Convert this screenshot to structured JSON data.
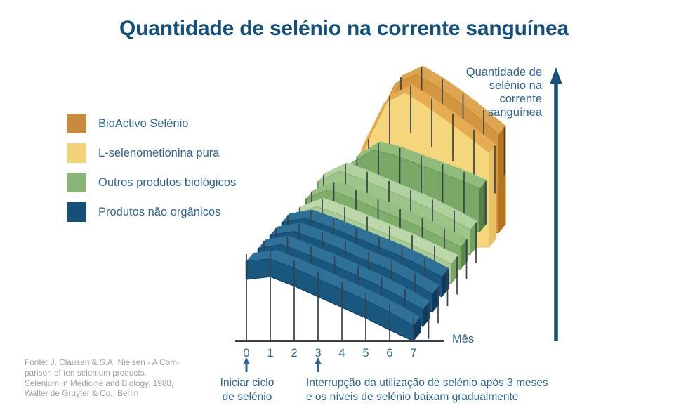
{
  "title": "Quantidade de selénio na corrente sanguínea",
  "legend": {
    "items": [
      {
        "label": "BioActivo Selénio",
        "color": "#C68B3E"
      },
      {
        "label": "L-selenometionina pura",
        "color": "#F1D27B"
      },
      {
        "label": "Outros produtos biológicos",
        "color": "#8BB578"
      },
      {
        "label": "Produtos não orgânicos",
        "color": "#174F7B"
      }
    ]
  },
  "y_axis": {
    "label": "Quantidade de\nselénio na\ncorrente\nsanguínea"
  },
  "x_axis": {
    "label": "Mês",
    "ticks": [
      "0",
      "1",
      "2",
      "3",
      "4",
      "5",
      "6",
      "7"
    ]
  },
  "annotations": {
    "start": "Iniciar ciclo\nde selénio",
    "stop": "Interrupção da utilização de selénio após 3 meses\ne os níveis de selénio baixam gradualmente"
  },
  "source": "Fonte: J. Clausen & S.A. Nielsen - A Com-\nparison of ten selenium products.\nSelenium in Medicine and Biology, 1988,\nWalter de Gruyter & Co., Berlin",
  "colors": {
    "title_blue": "#14517E",
    "text_blue": "#2E6594",
    "arrow_blue": "#174F7C",
    "tick_line": "#394048",
    "source_gray": "#A2A2A2"
  },
  "chart_data": {
    "type": "bar",
    "subtype": "3d-ribbon-chart, 10 ribbons drawn front-to-back, one per selenium product",
    "title": "Quantidade de selénio na corrente sanguínea",
    "xlabel": "Mês",
    "ylabel": "Quantidade de selénio na corrente sanguínea",
    "x": [
      0,
      1,
      2,
      3,
      4,
      5,
      6,
      7
    ],
    "ylim": [
      0,
      110
    ],
    "y_unit": "relative level (no numeric scale shown)",
    "legend_position": "left",
    "events": [
      {
        "month": 0,
        "label": "Iniciar ciclo de selénio"
      },
      {
        "month": 3,
        "label": "Interrupção da utilização de selénio após 3 meses e os níveis de selénio baixam gradualmente"
      }
    ],
    "series": [
      {
        "name": "Produtos não orgânicos 1",
        "group": "Produtos não orgânicos",
        "values": [
          60,
          62,
          55,
          47,
          39,
          31,
          22,
          12
        ],
        "thickness": 26,
        "tick": 42,
        "face": "#1A577F",
        "top": "#2F7198",
        "cap": "#0D3C60"
      },
      {
        "name": "Produtos não orgânicos 2",
        "group": "Produtos não orgânicos",
        "values": [
          59,
          62,
          55,
          48,
          40,
          32,
          23,
          13
        ],
        "thickness": 27,
        "tick": 42,
        "face": "#1A577F",
        "top": "#2F7198",
        "cap": "#0D3C60"
      },
      {
        "name": "Produtos não orgânicos 3",
        "group": "Produtos não orgânicos",
        "values": [
          58,
          61,
          55,
          48,
          40,
          33,
          24,
          14
        ],
        "thickness": 28,
        "tick": 42,
        "face": "#19557D",
        "top": "#2E7096",
        "cap": "#0D3C60"
      },
      {
        "name": "Produtos não orgânicos 4",
        "group": "Produtos não orgânicos",
        "values": [
          57,
          60,
          54,
          47,
          40,
          33,
          25,
          16
        ],
        "thickness": 29,
        "tick": 42,
        "face": "#19557D",
        "top": "#2E7096",
        "cap": "#0D3C60"
      },
      {
        "name": "Outros produtos biológicos 1",
        "group": "Outros produtos biológicos",
        "values": [
          52,
          58,
          52,
          45,
          38,
          31,
          23,
          15
        ],
        "thickness": 36,
        "tick": 44,
        "face": "#A9CB96",
        "top": "#BCD8AA",
        "cap": "#7EA468"
      },
      {
        "name": "Outros produtos biológicos 2",
        "group": "Outros produtos biológicos",
        "values": [
          53,
          60,
          54,
          47,
          40,
          33,
          25,
          17
        ],
        "thickness": 42,
        "tick": 46,
        "face": "#7FAD6B",
        "top": "#95BF81",
        "cap": "#5B894D"
      },
      {
        "name": "Outros produtos biológicos 3",
        "group": "Outros produtos biológicos",
        "values": [
          55,
          63,
          57,
          50,
          43,
          36,
          28,
          19
        ],
        "thickness": 48,
        "tick": 48,
        "face": "#9DC489",
        "top": "#B0D29E",
        "cap": "#75A263"
      },
      {
        "name": "Outros produtos biológicos 4",
        "group": "Outros produtos biológicos",
        "values": [
          22,
          58,
          68,
          64,
          58,
          52,
          46,
          39
        ],
        "thickness": 62,
        "tick": 52,
        "face": "#7AA967",
        "top": "#90BC7C",
        "cap": "#567F47"
      },
      {
        "name": "L-selenometionina pura",
        "group": "L-selenometionina pura",
        "values": [
          15,
          60,
          92,
          100,
          90,
          79,
          67,
          55
        ],
        "thickness": 195,
        "sink": 30,
        "tick": 58,
        "face": "#F5D67D",
        "top": "#E5AC52",
        "cap": "#E8C066"
      },
      {
        "name": "BioActivo Selénio",
        "group": "BioActivo Selénio",
        "values": [
          18,
          64,
          96,
          103,
          94,
          83,
          71,
          58
        ],
        "thickness": 200,
        "sink": 30,
        "tick": 58,
        "face": "#D3953F",
        "top": "#DDA54F",
        "cap": "#B5741F"
      }
    ]
  }
}
